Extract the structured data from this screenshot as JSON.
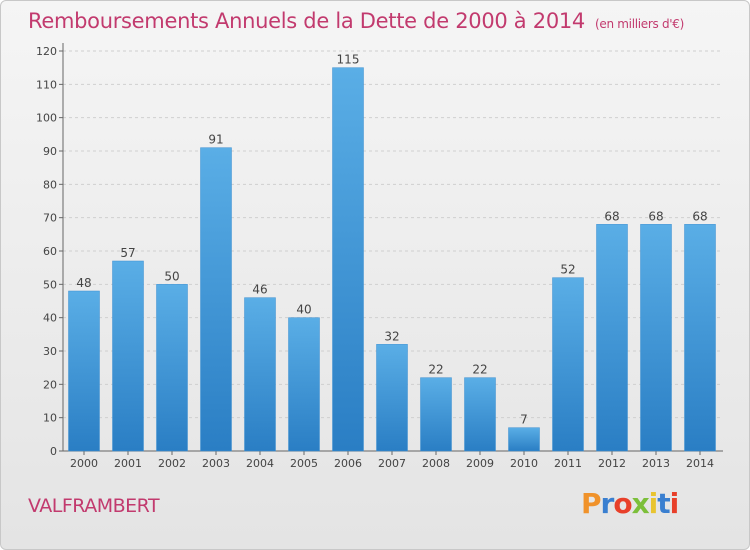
{
  "title": "Remboursements Annuels de la Dette de 2000 à 2014",
  "unit": "(en milliers d'€)",
  "place": "VALFRAMBERT",
  "logo": "Proxiti",
  "colors": {
    "title": "#c23a6e",
    "bar_top": "#5aaee6",
    "bar_bottom": "#2a7ec4"
  },
  "chart_data": {
    "type": "bar",
    "categories": [
      "2000",
      "2001",
      "2002",
      "2003",
      "2004",
      "2005",
      "2006",
      "2007",
      "2008",
      "2009",
      "2010",
      "2011",
      "2012",
      "2013",
      "2014"
    ],
    "values": [
      48,
      57,
      50,
      91,
      46,
      40,
      115,
      32,
      22,
      22,
      7,
      52,
      68,
      68,
      68
    ],
    "title": "Remboursements Annuels de la Dette de 2000 à 2014",
    "ylim": [
      0,
      120
    ],
    "yticks": [
      0,
      10,
      20,
      30,
      40,
      50,
      60,
      70,
      80,
      90,
      100,
      110,
      120
    ],
    "grid": true
  }
}
